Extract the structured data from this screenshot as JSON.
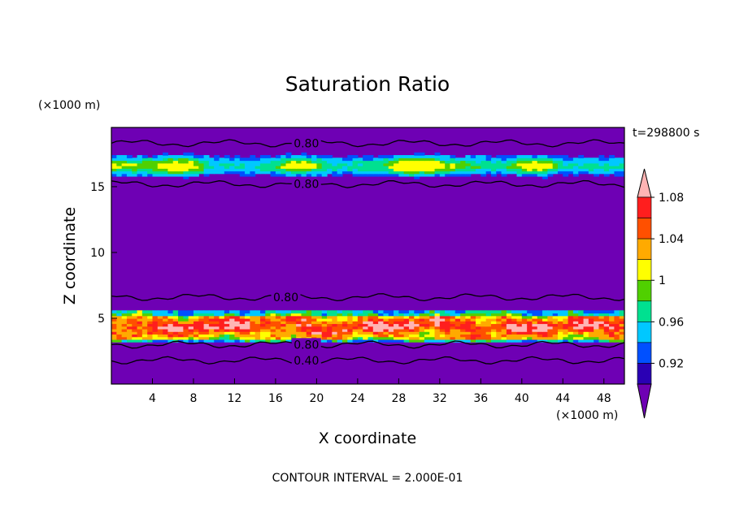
{
  "chart_data": {
    "type": "heatmap",
    "title": "Saturation Ratio",
    "xlabel": "X coordinate",
    "ylabel": "Z coordinate",
    "x_unit": "(×1000 m)",
    "y_unit": "(×1000 m)",
    "time_label": "t=298800  s",
    "footer": "CONTOUR INTERVAL = 2.000E-01",
    "xlim": [
      0,
      50
    ],
    "ylim": [
      0,
      19.5
    ],
    "x_ticks": [
      4,
      8,
      12,
      16,
      20,
      24,
      28,
      32,
      36,
      40,
      44,
      48
    ],
    "y_ticks": [
      5,
      10,
      15
    ],
    "colorbar": {
      "levels": [
        0.92,
        0.94,
        0.96,
        0.98,
        1,
        1.02,
        1.04,
        1.06,
        1.08,
        1.1
      ],
      "labels": [
        "0.92",
        "0.96",
        "1",
        "1.04",
        "1.08"
      ],
      "label_values": [
        0.92,
        0.96,
        1.0,
        1.04,
        1.08
      ],
      "colors": [
        "#6e00b4",
        "#2a00b4",
        "#0050ff",
        "#00c8ff",
        "#00e090",
        "#50d000",
        "#ffff00",
        "#ffaa00",
        "#ff5000",
        "#ff1e1e",
        "#ffb4b4"
      ]
    },
    "contour_lines": [
      {
        "value": "0.80",
        "z": 18.3
      },
      {
        "value": "0.80",
        "z": 15.2
      },
      {
        "value": "0.80",
        "z": 6.6
      },
      {
        "value": "0.80",
        "z": 3.0
      },
      {
        "value": "0.40",
        "z": 1.8
      }
    ],
    "features": [
      {
        "name": "upper supersaturated layer",
        "z_range": [
          15.5,
          17.5
        ],
        "max_ratio": 1.04
      },
      {
        "name": "lower supersaturated layer",
        "z_range": [
          3.2,
          5.5
        ],
        "max_ratio": 1.1
      }
    ],
    "background_value": "below 0.92"
  }
}
